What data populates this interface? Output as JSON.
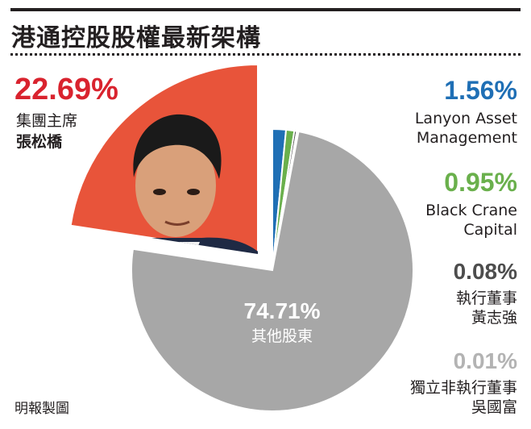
{
  "title": "港通控股股權最新架構",
  "credit": "明報製圖",
  "colors": {
    "chairman": "#e8543a",
    "lanyon": "#1f6fb5",
    "blackcrane": "#6ab04c",
    "exec": "#555555",
    "indep": "#aaaaaa",
    "others": "#a7a7a7",
    "pct_chairman": "#d9232e",
    "pct_lanyon": "#1f6fb5",
    "pct_blackcrane": "#6ab04c",
    "pct_exec": "#4d4d4d",
    "pct_indep": "#b3b3b3"
  },
  "chart_data": {
    "type": "pie",
    "title": "港通控股股權最新架構",
    "slices": [
      {
        "key": "chairman",
        "value": 22.69,
        "pct": "22.69%",
        "label": "集團主席",
        "name": "張松橋",
        "exploded": true
      },
      {
        "key": "lanyon",
        "value": 1.56,
        "pct": "1.56%",
        "label": "Lanyon Asset Management",
        "line1": "Lanyon Asset",
        "line2": "Management"
      },
      {
        "key": "blackcrane",
        "value": 0.95,
        "pct": "0.95%",
        "label": "Black Crane Capital",
        "line1": "Black Crane",
        "line2": "Capital"
      },
      {
        "key": "exec",
        "value": 0.08,
        "pct": "0.08%",
        "label": "執行董事 黃志強",
        "line1": "執行董事",
        "line2": "黃志強"
      },
      {
        "key": "indep",
        "value": 0.01,
        "pct": "0.01%",
        "label": "獨立非執行董事 吳國富",
        "line1": "獨立非執行董事",
        "line2": "吳國富"
      },
      {
        "key": "others",
        "value": 74.71,
        "pct": "74.71%",
        "label": "其他股東"
      }
    ]
  }
}
